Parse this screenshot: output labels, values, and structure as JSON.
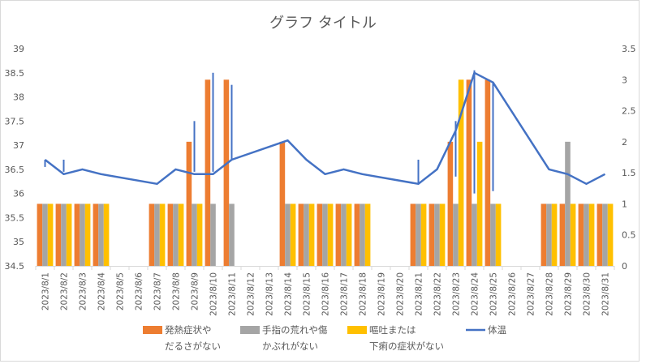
{
  "chart_data": {
    "type": "bar",
    "title": "グラフ タイトル",
    "categories": [
      "2023/8/1",
      "2023/8/2",
      "2023/8/3",
      "2023/8/4",
      "2023/8/5",
      "2023/8/6",
      "2023/8/7",
      "2023/8/8",
      "2023/8/9",
      "2023/8/10",
      "2023/8/11",
      "2023/8/12",
      "2023/8/13",
      "2023/8/14",
      "2023/8/15",
      "2023/8/16",
      "2023/8/17",
      "2023/8/18",
      "2023/8/19",
      "2023/8/20",
      "2023/8/21",
      "2023/8/22",
      "2023/8/23",
      "2023/8/24",
      "2023/8/25",
      "2023/8/26",
      "2023/8/27",
      "2023/8/28",
      "2023/8/29",
      "2023/8/30",
      "2023/8/31"
    ],
    "y_primary": {
      "ylim": [
        34.5,
        39
      ],
      "ticks": [
        "34.5",
        "35",
        "35.5",
        "36",
        "36.5",
        "37",
        "37.5",
        "38",
        "38.5",
        "39"
      ]
    },
    "y_secondary": {
      "ylim": [
        0,
        3.5
      ],
      "ticks": [
        "0",
        "0.5",
        "1",
        "1.5",
        "2",
        "2.5",
        "3",
        "3.5"
      ]
    },
    "series": [
      {
        "name": "発熱症状や\nだるさがない",
        "type": "bar",
        "axis": "secondary",
        "color": "#ED7D31",
        "values": [
          1,
          1,
          1,
          1,
          null,
          null,
          1,
          1,
          2,
          3,
          3,
          null,
          null,
          2,
          1,
          1,
          1,
          1,
          null,
          null,
          1,
          1,
          2,
          3,
          3,
          null,
          null,
          1,
          1,
          1,
          1
        ]
      },
      {
        "name": "手指の荒れや傷\nかぶれがない",
        "type": "bar",
        "axis": "secondary",
        "color": "#A5A5A5",
        "values": [
          1,
          1,
          1,
          1,
          null,
          null,
          1,
          1,
          1,
          1,
          1,
          null,
          null,
          1,
          1,
          1,
          1,
          1,
          null,
          null,
          1,
          1,
          1,
          1,
          1,
          null,
          null,
          1,
          2,
          1,
          1
        ]
      },
      {
        "name": "嘔吐または\n下痢の症状がない",
        "type": "bar",
        "axis": "secondary",
        "color": "#FFC000",
        "values": [
          1,
          1,
          1,
          1,
          null,
          null,
          1,
          1,
          1,
          null,
          null,
          null,
          null,
          1,
          1,
          1,
          1,
          1,
          null,
          null,
          1,
          1,
          3,
          2,
          1,
          null,
          null,
          1,
          1,
          1,
          1
        ]
      },
      {
        "name": "体温",
        "type": "line",
        "axis": "primary",
        "color": "#4472C4",
        "values": [
          36.7,
          36.4,
          36.5,
          36.4,
          null,
          null,
          36.2,
          36.5,
          36.4,
          36.4,
          36.7,
          null,
          null,
          37.1,
          36.7,
          36.4,
          36.5,
          36.4,
          null,
          null,
          36.2,
          36.5,
          37.3,
          38.5,
          38.3,
          null,
          null,
          36.5,
          36.4,
          36.2,
          36.4
        ]
      }
    ],
    "error_spikes": [
      {
        "x_index": 0,
        "from": 36.55,
        "to": 36.7
      },
      {
        "x_index": 1,
        "from": 36.45,
        "to": 36.7
      },
      {
        "x_index": 8,
        "from": 36.45,
        "to": 37.5
      },
      {
        "x_index": 9,
        "from": 36.45,
        "to": 38.5
      },
      {
        "x_index": 10,
        "from": 36.7,
        "to": 38.25
      },
      {
        "x_index": 20,
        "from": 36.2,
        "to": 36.7
      },
      {
        "x_index": 22,
        "from": 36.35,
        "to": 37.5
      },
      {
        "x_index": 23,
        "from": 36.0,
        "to": 38.55
      },
      {
        "x_index": 24,
        "from": 36.05,
        "to": 38.3
      }
    ],
    "legend_position": "bottom",
    "grid": false
  }
}
